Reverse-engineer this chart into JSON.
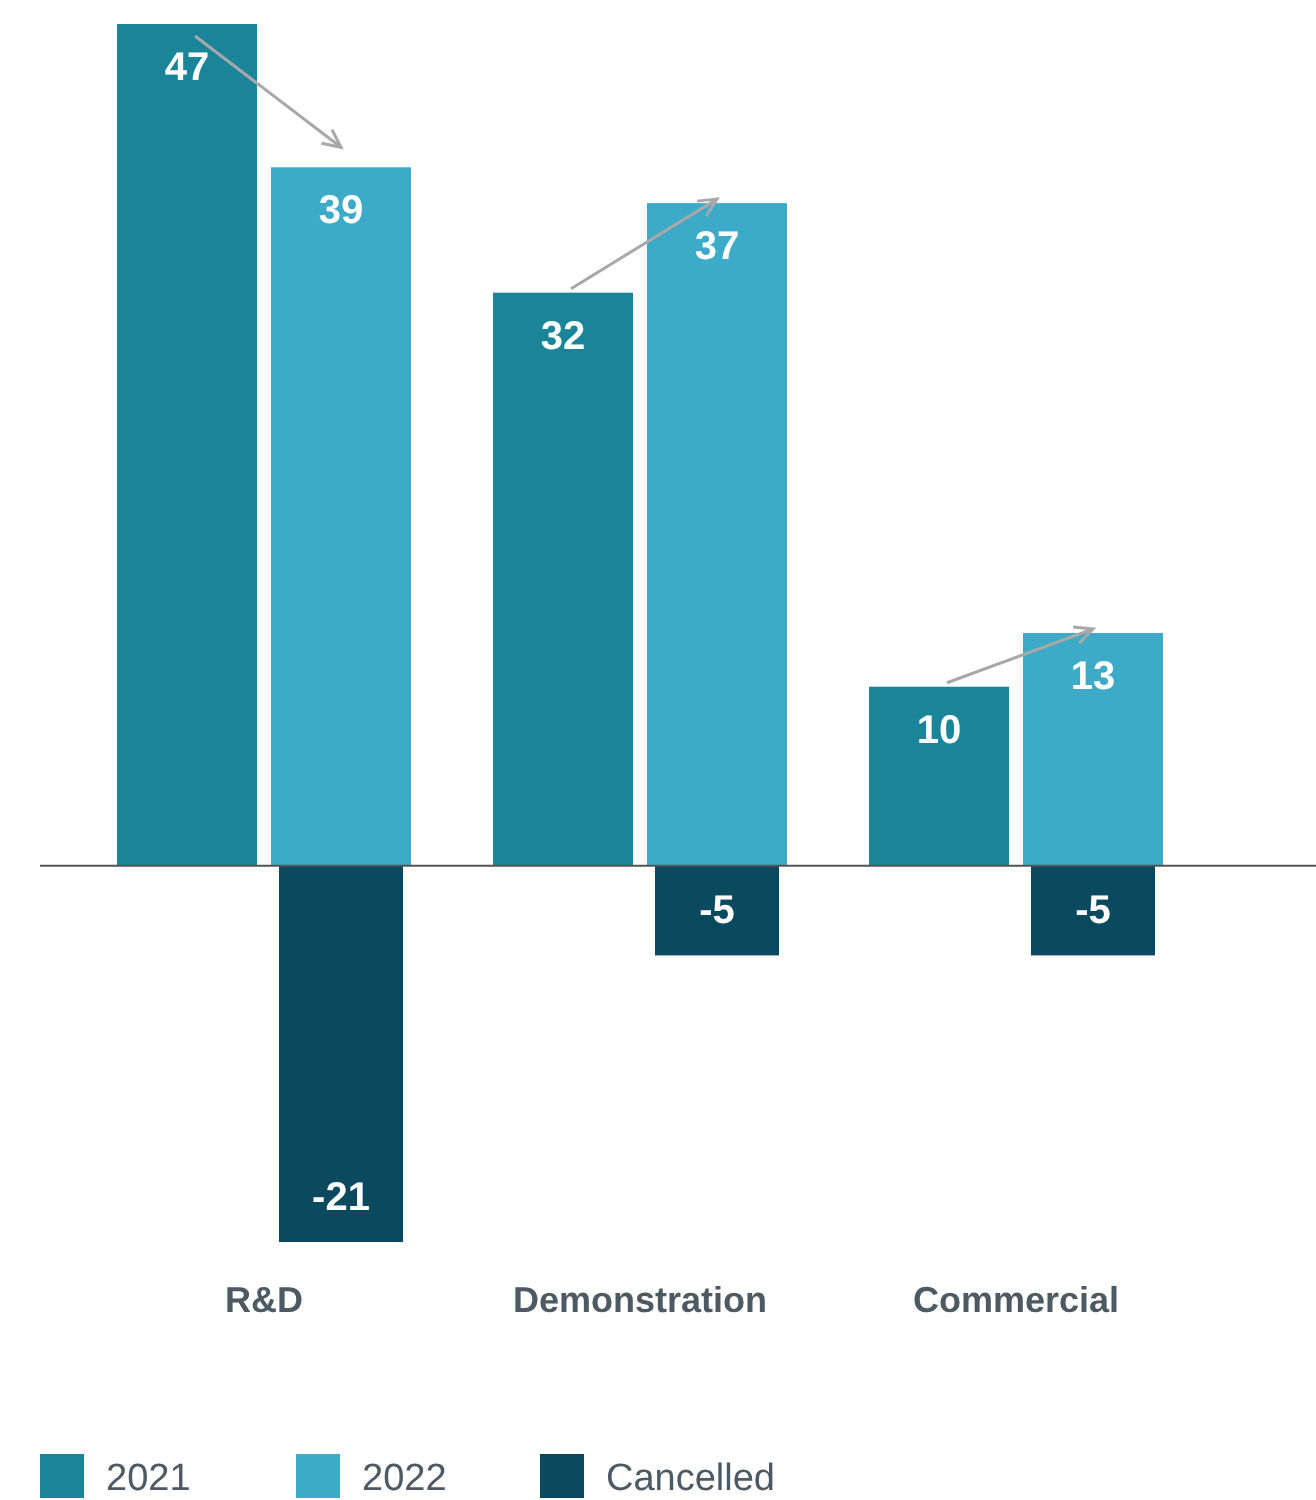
{
  "chart_data": {
    "type": "bar",
    "categories": [
      "R&D",
      "Demonstration",
      "Commercial"
    ],
    "series": [
      {
        "name": "2021",
        "color": "#1a8599",
        "values": [
          47,
          32,
          10
        ]
      },
      {
        "name": "2022",
        "color": "#3daac8",
        "values": [
          39,
          37,
          13
        ]
      },
      {
        "name": "Cancelled",
        "color": "#0b4a5e",
        "values": [
          -21,
          -5,
          -5
        ]
      }
    ],
    "data_labels": true,
    "legend": "bottom left"
  }
}
